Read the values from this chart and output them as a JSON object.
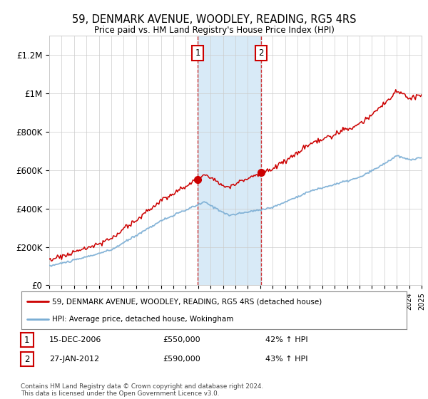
{
  "title": "59, DENMARK AVENUE, WOODLEY, READING, RG5 4RS",
  "subtitle": "Price paid vs. HM Land Registry's House Price Index (HPI)",
  "x_start_year": 1995,
  "x_end_year": 2025,
  "ylim": [
    0,
    1300000
  ],
  "yticks": [
    0,
    200000,
    400000,
    600000,
    800000,
    1000000,
    1200000
  ],
  "ytick_labels": [
    "£0",
    "£200K",
    "£400K",
    "£600K",
    "£800K",
    "£1M",
    "£1.2M"
  ],
  "transaction1_year": 2006.96,
  "transaction1_value": 550000,
  "transaction2_year": 2012.07,
  "transaction2_value": 590000,
  "legend_line1": "59, DENMARK AVENUE, WOODLEY, READING, RG5 4RS (detached house)",
  "legend_line2": "HPI: Average price, detached house, Wokingham",
  "note1_label": "1",
  "note1_date": "15-DEC-2006",
  "note1_price": "£550,000",
  "note1_hpi": "42% ↑ HPI",
  "note2_label": "2",
  "note2_date": "27-JAN-2012",
  "note2_price": "£590,000",
  "note2_hpi": "43% ↑ HPI",
  "footer": "Contains HM Land Registry data © Crown copyright and database right 2024.\nThis data is licensed under the Open Government Licence v3.0.",
  "red_color": "#cc0000",
  "blue_color": "#7aadd4",
  "shade_color": "#d8eaf7",
  "background_color": "#ffffff"
}
